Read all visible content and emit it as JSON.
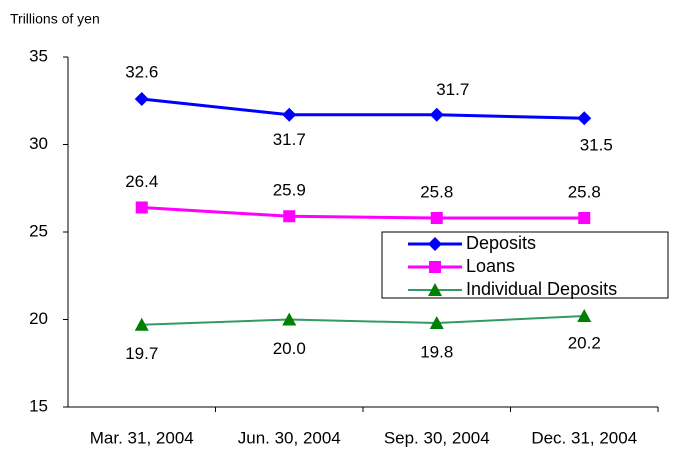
{
  "chart_data": {
    "type": "line",
    "y_label": "Trillions of yen",
    "categories": [
      "Mar. 31, 2004",
      "Jun. 30, 2004",
      "Sep. 30, 2004",
      "Dec. 31, 2004"
    ],
    "series": [
      {
        "name": "Deposits",
        "color": "#0000ff",
        "marker": "diamond",
        "values": [
          32.6,
          31.7,
          31.7,
          31.5
        ],
        "value_labels": [
          "32.6",
          "31.7",
          "31.7",
          "31.5"
        ]
      },
      {
        "name": "Loans",
        "color": "#ff00ff",
        "marker": "square",
        "values": [
          26.4,
          25.9,
          25.8,
          25.8
        ],
        "value_labels": [
          "26.4",
          "25.9",
          "25.8",
          "25.8"
        ]
      },
      {
        "name": "Individual Deposits",
        "color": "#339966",
        "marker": "triangle",
        "values": [
          19.7,
          20.0,
          19.8,
          20.2
        ],
        "value_labels": [
          "19.7",
          "20.0",
          "19.8",
          "20.2"
        ]
      }
    ],
    "ylim": [
      15,
      35
    ],
    "yticks": [
      15,
      20,
      25,
      30,
      35
    ],
    "grid": false,
    "legend": "right"
  }
}
